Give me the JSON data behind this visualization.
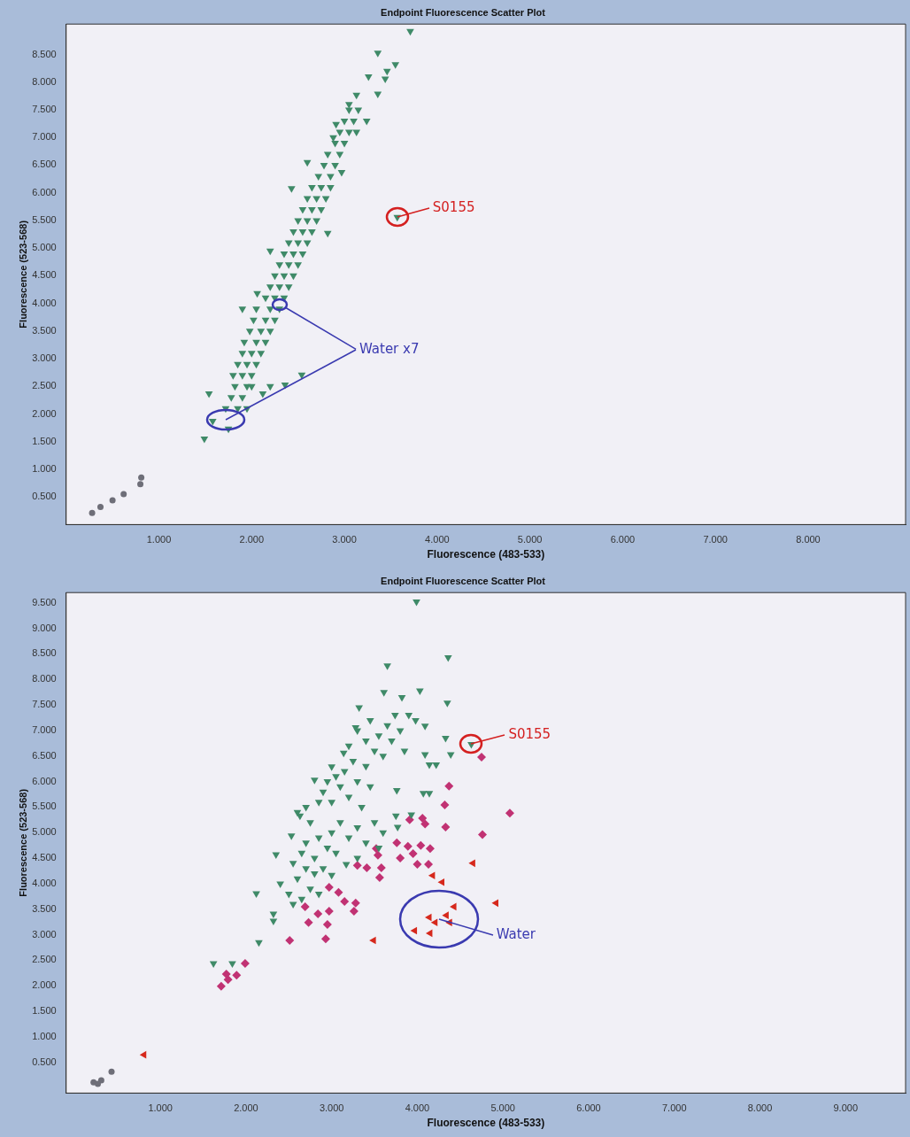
{
  "chart_data": [
    {
      "type": "scatter",
      "title": "Endpoint Fluorescence Scatter Plot",
      "xlabel": "Fluorescence (483-533)",
      "ylabel": "Fluorescence (523-568)",
      "xlim": [
        0,
        9.05
      ],
      "ylim": [
        0,
        9.05
      ],
      "xticks": [
        {
          "value": 1,
          "label": "1.000"
        },
        {
          "value": 2,
          "label": "2.000"
        },
        {
          "value": 3,
          "label": "3.000"
        },
        {
          "value": 4,
          "label": "4.000"
        },
        {
          "value": 5,
          "label": "5.000"
        },
        {
          "value": 6,
          "label": "6.000"
        },
        {
          "value": 7,
          "label": "7.000"
        },
        {
          "value": 8,
          "label": "8.000"
        }
      ],
      "yticks": [
        {
          "value": 0.5,
          "label": "0.500"
        },
        {
          "value": 1,
          "label": "1.000"
        },
        {
          "value": 1.5,
          "label": "1.500"
        },
        {
          "value": 2,
          "label": "2.000"
        },
        {
          "value": 2.5,
          "label": "2.500"
        },
        {
          "value": 3,
          "label": "3.000"
        },
        {
          "value": 3.5,
          "label": "3.500"
        },
        {
          "value": 4,
          "label": "4.000"
        },
        {
          "value": 4.5,
          "label": "4.500"
        },
        {
          "value": 5,
          "label": "5.000"
        },
        {
          "value": 5.5,
          "label": "5.500"
        },
        {
          "value": 6,
          "label": "6.000"
        },
        {
          "value": 6.5,
          "label": "6.500"
        },
        {
          "value": 7,
          "label": "7.000"
        },
        {
          "value": 7.5,
          "label": "7.500"
        },
        {
          "value": 8,
          "label": "8.000"
        },
        {
          "value": 8.5,
          "label": "8.500"
        }
      ],
      "grid": false,
      "legend": false,
      "annotations": [
        {
          "text": "S0155",
          "x": 3.57,
          "y": 5.56
        },
        {
          "text": "Water x7",
          "x": 1.72,
          "y": 1.9
        }
      ],
      "series": [
        {
          "color": "#3f8a68",
          "marker": "triangle-down",
          "x": [
            3.71,
            3.36,
            3.55,
            3.46,
            3.26,
            3.44,
            3.13,
            3.36,
            3.05,
            3.24,
            2.91,
            2.88,
            3.13,
            2.6,
            2.97,
            2.43,
            3.57,
            2.82,
            2.2,
            2.06,
            1.54,
            1.49,
            1.75,
            1.58,
            2.12,
            2.36,
            2.54,
            2.2,
            1.72,
            1.85,
            1.95,
            1.78,
            1.9,
            1.82,
            1.95,
            2.0,
            1.8,
            1.9,
            2.0,
            1.85,
            1.95,
            2.05,
            1.9,
            2.0,
            2.1,
            1.92,
            2.05,
            2.15,
            1.98,
            2.1,
            2.2,
            2.02,
            2.15,
            2.25,
            1.9,
            2.05,
            2.2,
            2.3,
            2.15,
            2.25,
            2.35,
            2.2,
            2.3,
            2.4,
            2.25,
            2.35,
            2.45,
            2.3,
            2.4,
            2.5,
            2.35,
            2.45,
            2.55,
            2.4,
            2.5,
            2.6,
            2.45,
            2.55,
            2.65,
            2.5,
            2.6,
            2.7,
            2.55,
            2.65,
            2.75,
            2.6,
            2.7,
            2.8,
            2.65,
            2.75,
            2.85,
            2.72,
            2.85,
            2.78,
            2.9,
            2.82,
            2.95,
            2.9,
            3.0,
            2.95,
            3.05,
            3.0,
            3.1,
            3.05,
            3.15
          ],
          "values": [
            8.92,
            8.53,
            8.32,
            8.2,
            8.1,
            8.06,
            7.77,
            7.79,
            7.6,
            7.3,
            7.24,
            7.0,
            7.1,
            6.55,
            6.37,
            6.08,
            5.56,
            5.27,
            4.95,
            4.18,
            2.37,
            1.55,
            1.73,
            1.87,
            2.37,
            2.53,
            2.71,
            2.5,
            2.1,
            2.1,
            2.1,
            2.3,
            2.3,
            2.5,
            2.5,
            2.5,
            2.7,
            2.7,
            2.7,
            2.9,
            2.9,
            2.9,
            3.1,
            3.1,
            3.1,
            3.3,
            3.3,
            3.3,
            3.5,
            3.5,
            3.5,
            3.7,
            3.7,
            3.7,
            3.9,
            3.9,
            3.9,
            3.9,
            4.1,
            4.1,
            4.1,
            4.3,
            4.3,
            4.3,
            4.5,
            4.5,
            4.5,
            4.7,
            4.7,
            4.7,
            4.9,
            4.9,
            4.9,
            5.1,
            5.1,
            5.1,
            5.3,
            5.3,
            5.3,
            5.5,
            5.5,
            5.5,
            5.7,
            5.7,
            5.7,
            5.9,
            5.9,
            5.9,
            6.1,
            6.1,
            6.1,
            6.3,
            6.3,
            6.5,
            6.5,
            6.7,
            6.7,
            6.9,
            6.9,
            7.1,
            7.1,
            7.3,
            7.3,
            7.5,
            7.5
          ]
        },
        {
          "color": "#6e6e78",
          "marker": "circle",
          "x": [
            0.28,
            0.37,
            0.5,
            0.62,
            0.8,
            0.81
          ],
          "values": [
            0.21,
            0.32,
            0.44,
            0.55,
            0.73,
            0.85
          ]
        }
      ]
    },
    {
      "type": "scatter",
      "title": "Endpoint Fluorescence Scatter Plot",
      "xlabel": "Fluorescence (483-533)",
      "ylabel": "Fluorescence (523-568)",
      "xlim": [
        -0.1,
        9.7
      ],
      "ylim": [
        -0.1,
        9.7
      ],
      "xticks": [
        {
          "value": 1,
          "label": "1.000"
        },
        {
          "value": 2,
          "label": "2.000"
        },
        {
          "value": 3,
          "label": "3.000"
        },
        {
          "value": 4,
          "label": "4.000"
        },
        {
          "value": 5,
          "label": "5.000"
        },
        {
          "value": 6,
          "label": "6.000"
        },
        {
          "value": 7,
          "label": "7.000"
        },
        {
          "value": 8,
          "label": "8.000"
        },
        {
          "value": 9,
          "label": "9.000"
        }
      ],
      "yticks": [
        {
          "value": 0.5,
          "label": "0.500"
        },
        {
          "value": 1,
          "label": "1.000"
        },
        {
          "value": 1.5,
          "label": "1.500"
        },
        {
          "value": 2,
          "label": "2.000"
        },
        {
          "value": 2.5,
          "label": "2.500"
        },
        {
          "value": 3,
          "label": "3.000"
        },
        {
          "value": 3.5,
          "label": "3.500"
        },
        {
          "value": 4,
          "label": "4.000"
        },
        {
          "value": 4.5,
          "label": "4.500"
        },
        {
          "value": 5,
          "label": "5.000"
        },
        {
          "value": 5.5,
          "label": "5.500"
        },
        {
          "value": 6,
          "label": "6.000"
        },
        {
          "value": 6.5,
          "label": "6.500"
        },
        {
          "value": 7,
          "label": "7.000"
        },
        {
          "value": 7.5,
          "label": "7.500"
        },
        {
          "value": 8,
          "label": "8.000"
        },
        {
          "value": 8.5,
          "label": "8.500"
        },
        {
          "value": 9,
          "label": "9.000"
        },
        {
          "value": 9.5,
          "label": "9.500"
        }
      ],
      "grid": false,
      "legend": false,
      "annotations": [
        {
          "text": "S0155",
          "x": 4.63,
          "y": 6.73
        },
        {
          "text": "Water",
          "x": 4.25,
          "y": 3.3
        }
      ],
      "series": [
        {
          "color": "#3f8a68",
          "marker": "triangle-down",
          "x": [
            3.99,
            3.65,
            4.36,
            3.61,
            3.32,
            3.82,
            4.03,
            4.35,
            3.74,
            3.98,
            4.09,
            3.28,
            4.33,
            4.09,
            4.22,
            4.39,
            4.63,
            4.14,
            4.07,
            4.14,
            3.76,
            2.8,
            3.14,
            3.0,
            2.63,
            2.53,
            2.35,
            2.12,
            2.32,
            2.32,
            2.15,
            1.62,
            1.84,
            3.93,
            3.75,
            3.77,
            3.17,
            3.0,
            2.6,
            2.7,
            2.75,
            2.85,
            2.9,
            2.95,
            3.0,
            3.05,
            3.1,
            3.15,
            3.2,
            3.25,
            3.3,
            3.35,
            3.4,
            3.45,
            3.5,
            3.55,
            3.6,
            3.65,
            3.7,
            3.8,
            3.85,
            3.9,
            3.3,
            3.4,
            3.45,
            3.2,
            2.7,
            2.8,
            2.85,
            2.9,
            2.95,
            3.0,
            3.05,
            3.1,
            3.2,
            3.3,
            3.4,
            3.5,
            3.55,
            3.6,
            3.3,
            2.4,
            2.5,
            2.55,
            2.6,
            2.65,
            2.7,
            2.75,
            2.8,
            2.65,
            2.55,
            2.85
          ],
          "values": [
            9.52,
            8.27,
            8.43,
            7.75,
            7.45,
            7.65,
            7.78,
            7.54,
            7.3,
            7.2,
            7.09,
            7.06,
            6.85,
            6.53,
            6.33,
            6.53,
            6.73,
            6.33,
            5.77,
            5.77,
            5.83,
            6.03,
            6.56,
            6.29,
            5.33,
            4.94,
            4.57,
            3.81,
            3.41,
            3.27,
            2.85,
            2.44,
            2.44,
            5.35,
            5.33,
            5.11,
            4.38,
            4.17,
            5.4,
            5.5,
            5.2,
            5.6,
            5.8,
            6.0,
            5.6,
            6.1,
            5.9,
            6.2,
            5.7,
            6.4,
            6.0,
            5.5,
            6.3,
            5.9,
            6.6,
            6.9,
            6.5,
            7.1,
            6.8,
            7.0,
            6.6,
            7.3,
            7.0,
            6.8,
            7.2,
            6.7,
            4.8,
            4.5,
            4.9,
            4.3,
            4.7,
            5.0,
            4.6,
            5.2,
            4.9,
            5.1,
            4.8,
            5.2,
            4.7,
            5.0,
            4.5,
            4.0,
            3.8,
            3.6,
            4.1,
            3.7,
            4.3,
            3.9,
            4.2,
            4.6,
            4.4,
            3.8
          ]
        },
        {
          "color": "#c13273",
          "marker": "diamond",
          "x": [
            1.99,
            1.89,
            1.79,
            1.71,
            1.77,
            2.51,
            2.93,
            2.73,
            2.95,
            2.69,
            2.84,
            2.97,
            2.97,
            3.08,
            3.15,
            3.28,
            3.26,
            3.3,
            3.41,
            3.58,
            3.56,
            3.52,
            3.54,
            3.76,
            3.89,
            4.04,
            4.15,
            3.8,
            3.95,
            4.0,
            4.13,
            3.91,
            4.06,
            4.09,
            4.33,
            4.32,
            4.37,
            4.75,
            5.08,
            4.76
          ],
          "values": [
            2.44,
            2.21,
            2.12,
            1.99,
            2.23,
            2.89,
            2.92,
            3.24,
            3.2,
            3.55,
            3.41,
            3.46,
            3.93,
            3.83,
            3.65,
            3.62,
            3.46,
            4.36,
            4.31,
            4.31,
            4.12,
            4.69,
            4.56,
            4.8,
            4.73,
            4.75,
            4.69,
            4.5,
            4.59,
            4.38,
            4.38,
            5.25,
            5.28,
            5.17,
            5.11,
            5.54,
            5.91,
            6.48,
            5.38,
            4.96
          ]
        },
        {
          "color": "#d6281c",
          "marker": "triangle-left",
          "x": [
            0.81,
            3.49,
            3.97,
            4.15,
            4.14,
            4.21,
            4.34,
            4.38,
            4.43,
            4.92,
            4.65,
            4.18,
            4.29
          ],
          "values": [
            0.65,
            2.89,
            3.08,
            3.03,
            3.34,
            3.24,
            3.38,
            3.24,
            3.55,
            3.62,
            4.4,
            4.16,
            4.03
          ]
        },
        {
          "color": "#6e6e78",
          "marker": "circle",
          "x": [
            0.22,
            0.31,
            0.27,
            0.43
          ],
          "values": [
            0.11,
            0.15,
            0.08,
            0.32
          ]
        }
      ]
    }
  ]
}
